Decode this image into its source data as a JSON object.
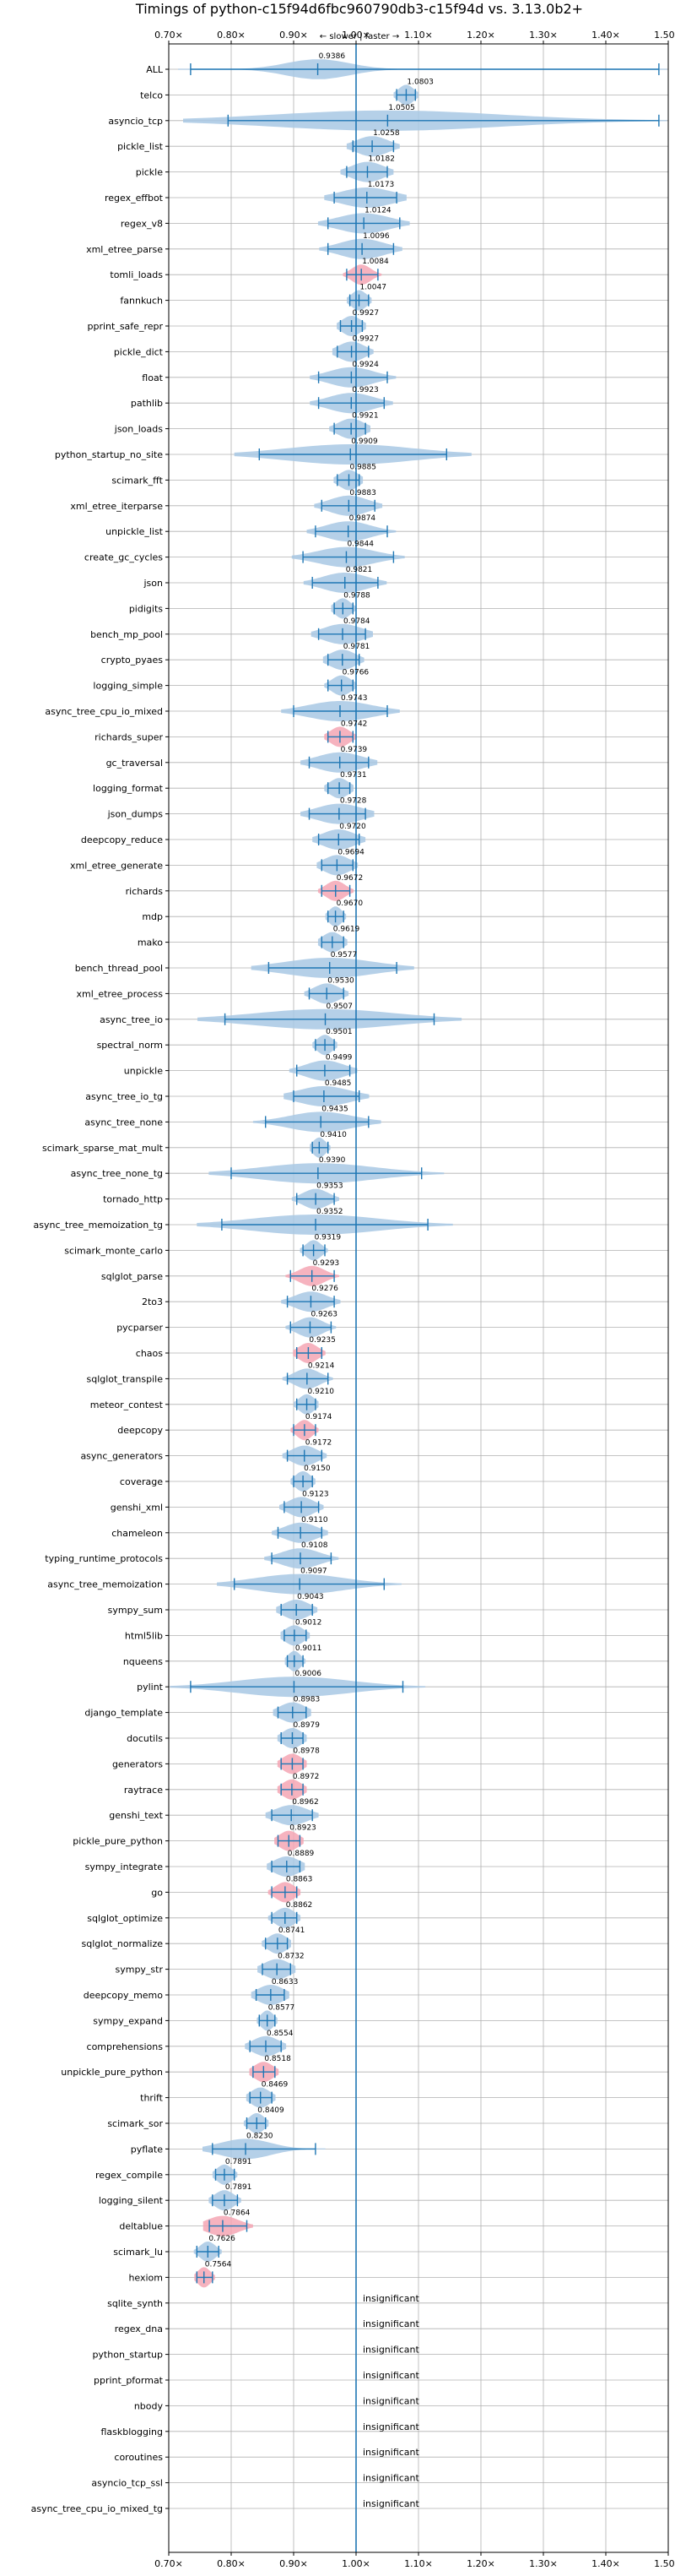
{
  "chart_data": {
    "type": "violin",
    "title": "Timings of python-c15f94d6fbc960790db3-c15f94d vs. 3.13.0b2+",
    "direction_note": "← slower | faster →",
    "x_ticks": [
      0.7,
      0.8,
      0.9,
      1.0,
      1.1,
      1.2,
      1.3,
      1.4,
      1.5
    ],
    "x_tick_labels": [
      "0.70×",
      "0.80×",
      "0.90×",
      "1.00×",
      "1.10×",
      "1.20×",
      "1.30×",
      "1.40×",
      "1.50×"
    ],
    "xlim": [
      0.7,
      1.5
    ],
    "reference_line": 1.0,
    "grid": true,
    "insignificant_label": "insignificant",
    "colors": {
      "violin": "#a8c8e4",
      "highlight": "#f4a6b4",
      "line": "#1f77b4",
      "grid": "#b0b0b0"
    },
    "benchmarks": [
      {
        "name": "ALL",
        "mean": 0.9386,
        "min": 0.735,
        "max": 1.485,
        "spread": 0.05
      },
      {
        "name": "telco",
        "mean": 1.0803,
        "min": 1.065,
        "max": 1.095,
        "spread": 0.012
      },
      {
        "name": "asyncio_tcp",
        "mean": 1.0505,
        "min": 0.795,
        "max": 1.485,
        "spread": 0.18
      },
      {
        "name": "pickle_list",
        "mean": 1.0258,
        "min": 0.995,
        "max": 1.06,
        "spread": 0.025
      },
      {
        "name": "pickle",
        "mean": 1.0182,
        "min": 0.985,
        "max": 1.05,
        "spread": 0.025
      },
      {
        "name": "regex_effbot",
        "mean": 1.0173,
        "min": 0.965,
        "max": 1.065,
        "spread": 0.04
      },
      {
        "name": "regex_v8",
        "mean": 1.0124,
        "min": 0.955,
        "max": 1.07,
        "spread": 0.04
      },
      {
        "name": "xml_etree_parse",
        "mean": 1.0096,
        "min": 0.955,
        "max": 1.06,
        "spread": 0.035
      },
      {
        "name": "tomli_loads",
        "mean": 1.0084,
        "min": 0.985,
        "max": 1.035,
        "spread": 0.015,
        "highlight": true
      },
      {
        "name": "fannkuch",
        "mean": 1.0047,
        "min": 0.99,
        "max": 1.02,
        "spread": 0.012
      },
      {
        "name": "pprint_safe_repr",
        "mean": 0.9927,
        "min": 0.975,
        "max": 1.01,
        "spread": 0.015
      },
      {
        "name": "pickle_dict",
        "mean": 0.9927,
        "min": 0.97,
        "max": 1.02,
        "spread": 0.02
      },
      {
        "name": "float",
        "mean": 0.9924,
        "min": 0.94,
        "max": 1.05,
        "spread": 0.035
      },
      {
        "name": "pathlib",
        "mean": 0.9923,
        "min": 0.94,
        "max": 1.045,
        "spread": 0.035
      },
      {
        "name": "json_loads",
        "mean": 0.9921,
        "min": 0.965,
        "max": 1.015,
        "spread": 0.02
      },
      {
        "name": "python_startup_no_site",
        "mean": 0.9909,
        "min": 0.845,
        "max": 1.145,
        "spread": 0.1
      },
      {
        "name": "scimark_fft",
        "mean": 0.9885,
        "min": 0.97,
        "max": 1.005,
        "spread": 0.015
      },
      {
        "name": "xml_etree_iterparse",
        "mean": 0.9883,
        "min": 0.945,
        "max": 1.03,
        "spread": 0.03
      },
      {
        "name": "unpickle_list",
        "mean": 0.9874,
        "min": 0.935,
        "max": 1.05,
        "spread": 0.035
      },
      {
        "name": "create_gc_cycles",
        "mean": 0.9844,
        "min": 0.915,
        "max": 1.06,
        "spread": 0.045
      },
      {
        "name": "json",
        "mean": 0.9821,
        "min": 0.93,
        "max": 1.035,
        "spread": 0.035
      },
      {
        "name": "pidigits",
        "mean": 0.9788,
        "min": 0.965,
        "max": 0.995,
        "spread": 0.012
      },
      {
        "name": "bench_mp_pool",
        "mean": 0.9784,
        "min": 0.94,
        "max": 1.015,
        "spread": 0.03
      },
      {
        "name": "crypto_pyaes",
        "mean": 0.9781,
        "min": 0.955,
        "max": 1.005,
        "spread": 0.02
      },
      {
        "name": "logging_simple",
        "mean": 0.9766,
        "min": 0.955,
        "max": 0.995,
        "spread": 0.015
      },
      {
        "name": "async_tree_cpu_io_mixed",
        "mean": 0.9743,
        "min": 0.9,
        "max": 1.05,
        "spread": 0.05
      },
      {
        "name": "richards_super",
        "mean": 0.9742,
        "min": 0.955,
        "max": 0.995,
        "spread": 0.015,
        "highlight": true
      },
      {
        "name": "gc_traversal",
        "mean": 0.9739,
        "min": 0.925,
        "max": 1.02,
        "spread": 0.035
      },
      {
        "name": "logging_format",
        "mean": 0.9731,
        "min": 0.955,
        "max": 0.99,
        "spread": 0.015
      },
      {
        "name": "json_dumps",
        "mean": 0.9728,
        "min": 0.925,
        "max": 1.015,
        "spread": 0.035
      },
      {
        "name": "deepcopy_reduce",
        "mean": 0.972,
        "min": 0.94,
        "max": 1.005,
        "spread": 0.025
      },
      {
        "name": "xml_etree_generate",
        "mean": 0.9694,
        "min": 0.945,
        "max": 0.995,
        "spread": 0.02
      },
      {
        "name": "richards",
        "mean": 0.9672,
        "min": 0.945,
        "max": 0.99,
        "spread": 0.015,
        "highlight": true
      },
      {
        "name": "mdp",
        "mean": 0.967,
        "min": 0.955,
        "max": 0.98,
        "spread": 0.01
      },
      {
        "name": "mako",
        "mean": 0.9619,
        "min": 0.945,
        "max": 0.98,
        "spread": 0.015
      },
      {
        "name": "bench_thread_pool",
        "mean": 0.9577,
        "min": 0.86,
        "max": 1.065,
        "spread": 0.07
      },
      {
        "name": "xml_etree_process",
        "mean": 0.953,
        "min": 0.925,
        "max": 0.98,
        "spread": 0.02
      },
      {
        "name": "async_tree_io",
        "mean": 0.9507,
        "min": 0.79,
        "max": 1.125,
        "spread": 0.11
      },
      {
        "name": "spectral_norm",
        "mean": 0.9501,
        "min": 0.935,
        "max": 0.965,
        "spread": 0.012
      },
      {
        "name": "unpickle",
        "mean": 0.9499,
        "min": 0.905,
        "max": 0.99,
        "spread": 0.03
      },
      {
        "name": "async_tree_io_tg",
        "mean": 0.9485,
        "min": 0.9,
        "max": 1.005,
        "spread": 0.04
      },
      {
        "name": "async_tree_none",
        "mean": 0.9435,
        "min": 0.855,
        "max": 1.02,
        "spread": 0.05
      },
      {
        "name": "scimark_sparse_mat_mult",
        "mean": 0.941,
        "min": 0.93,
        "max": 0.955,
        "spread": 0.01
      },
      {
        "name": "async_tree_none_tg",
        "mean": 0.939,
        "min": 0.8,
        "max": 1.105,
        "spread": 0.09
      },
      {
        "name": "tornado_http",
        "mean": 0.9353,
        "min": 0.905,
        "max": 0.965,
        "spread": 0.02
      },
      {
        "name": "async_tree_memoization_tg",
        "mean": 0.9352,
        "min": 0.785,
        "max": 1.115,
        "spread": 0.1
      },
      {
        "name": "scimark_monte_carlo",
        "mean": 0.9319,
        "min": 0.915,
        "max": 0.95,
        "spread": 0.012
      },
      {
        "name": "sqlglot_parse",
        "mean": 0.9293,
        "min": 0.895,
        "max": 0.965,
        "spread": 0.02,
        "highlight": true
      },
      {
        "name": "2to3",
        "mean": 0.9276,
        "min": 0.89,
        "max": 0.965,
        "spread": 0.025
      },
      {
        "name": "pycparser",
        "mean": 0.9263,
        "min": 0.895,
        "max": 0.96,
        "spread": 0.02
      },
      {
        "name": "chaos",
        "mean": 0.9235,
        "min": 0.905,
        "max": 0.945,
        "spread": 0.015,
        "highlight": true
      },
      {
        "name": "sqlglot_transpile",
        "mean": 0.9214,
        "min": 0.89,
        "max": 0.955,
        "spread": 0.02
      },
      {
        "name": "meteor_contest",
        "mean": 0.921,
        "min": 0.905,
        "max": 0.935,
        "spread": 0.012
      },
      {
        "name": "deepcopy",
        "mean": 0.9174,
        "min": 0.9,
        "max": 0.935,
        "spread": 0.012,
        "highlight": true
      },
      {
        "name": "async_generators",
        "mean": 0.9172,
        "min": 0.89,
        "max": 0.945,
        "spread": 0.02
      },
      {
        "name": "coverage",
        "mean": 0.915,
        "min": 0.9,
        "max": 0.93,
        "spread": 0.012
      },
      {
        "name": "genshi_xml",
        "mean": 0.9123,
        "min": 0.885,
        "max": 0.94,
        "spread": 0.02
      },
      {
        "name": "chameleon",
        "mean": 0.911,
        "min": 0.875,
        "max": 0.945,
        "spread": 0.025
      },
      {
        "name": "typing_runtime_protocols",
        "mean": 0.9108,
        "min": 0.865,
        "max": 0.96,
        "spread": 0.03
      },
      {
        "name": "async_tree_memoization",
        "mean": 0.9097,
        "min": 0.805,
        "max": 1.045,
        "spread": 0.07
      },
      {
        "name": "sympy_sum",
        "mean": 0.9043,
        "min": 0.88,
        "max": 0.93,
        "spread": 0.02
      },
      {
        "name": "html5lib",
        "mean": 0.9012,
        "min": 0.885,
        "max": 0.92,
        "spread": 0.015
      },
      {
        "name": "nqueens",
        "mean": 0.9011,
        "min": 0.89,
        "max": 0.915,
        "spread": 0.01
      },
      {
        "name": "pylint",
        "mean": 0.9006,
        "min": 0.735,
        "max": 1.075,
        "spread": 0.09
      },
      {
        "name": "django_template",
        "mean": 0.8983,
        "min": 0.875,
        "max": 0.92,
        "spread": 0.02
      },
      {
        "name": "docutils",
        "mean": 0.8979,
        "min": 0.88,
        "max": 0.915,
        "spread": 0.015
      },
      {
        "name": "generators",
        "mean": 0.8978,
        "min": 0.88,
        "max": 0.915,
        "spread": 0.015,
        "highlight": true
      },
      {
        "name": "raytrace",
        "mean": 0.8972,
        "min": 0.88,
        "max": 0.915,
        "spread": 0.015,
        "highlight": true
      },
      {
        "name": "genshi_text",
        "mean": 0.8962,
        "min": 0.865,
        "max": 0.93,
        "spread": 0.025
      },
      {
        "name": "pickle_pure_python",
        "mean": 0.8923,
        "min": 0.875,
        "max": 0.91,
        "spread": 0.015,
        "highlight": true
      },
      {
        "name": "sympy_integrate",
        "mean": 0.8889,
        "min": 0.865,
        "max": 0.91,
        "spread": 0.02
      },
      {
        "name": "go",
        "mean": 0.8863,
        "min": 0.865,
        "max": 0.905,
        "spread": 0.015,
        "highlight": true
      },
      {
        "name": "sqlglot_optimize",
        "mean": 0.8862,
        "min": 0.865,
        "max": 0.905,
        "spread": 0.015
      },
      {
        "name": "sqlglot_normalize",
        "mean": 0.8741,
        "min": 0.855,
        "max": 0.89,
        "spread": 0.015
      },
      {
        "name": "sympy_str",
        "mean": 0.8732,
        "min": 0.85,
        "max": 0.895,
        "spread": 0.02
      },
      {
        "name": "deepcopy_memo",
        "mean": 0.8633,
        "min": 0.84,
        "max": 0.885,
        "spread": 0.02
      },
      {
        "name": "sympy_expand",
        "mean": 0.8577,
        "min": 0.845,
        "max": 0.87,
        "spread": 0.01
      },
      {
        "name": "comprehensions",
        "mean": 0.8554,
        "min": 0.83,
        "max": 0.88,
        "spread": 0.02
      },
      {
        "name": "unpickle_pure_python",
        "mean": 0.8518,
        "min": 0.835,
        "max": 0.87,
        "spread": 0.015,
        "highlight": true
      },
      {
        "name": "thrift",
        "mean": 0.8469,
        "min": 0.83,
        "max": 0.865,
        "spread": 0.015
      },
      {
        "name": "scimark_sor",
        "mean": 0.8409,
        "min": 0.825,
        "max": 0.855,
        "spread": 0.012
      },
      {
        "name": "pyflate",
        "mean": 0.823,
        "min": 0.77,
        "max": 0.935,
        "spread": 0.04
      },
      {
        "name": "regex_compile",
        "mean": 0.7891,
        "min": 0.775,
        "max": 0.805,
        "spread": 0.012
      },
      {
        "name": "logging_silent",
        "mean": 0.7891,
        "min": 0.77,
        "max": 0.81,
        "spread": 0.015
      },
      {
        "name": "deltablue",
        "mean": 0.7864,
        "min": 0.765,
        "max": 0.825,
        "spread": 0.025,
        "highlight": true
      },
      {
        "name": "scimark_lu",
        "mean": 0.7626,
        "min": 0.745,
        "max": 0.78,
        "spread": 0.012
      },
      {
        "name": "hexiom",
        "mean": 0.7564,
        "min": 0.745,
        "max": 0.77,
        "spread": 0.01,
        "highlight": true
      },
      {
        "name": "sqlite_synth",
        "insignificant": true
      },
      {
        "name": "regex_dna",
        "insignificant": true
      },
      {
        "name": "python_startup",
        "insignificant": true
      },
      {
        "name": "pprint_pformat",
        "insignificant": true
      },
      {
        "name": "nbody",
        "insignificant": true
      },
      {
        "name": "flaskblogging",
        "insignificant": true
      },
      {
        "name": "coroutines",
        "insignificant": true
      },
      {
        "name": "asyncio_tcp_ssl",
        "insignificant": true
      },
      {
        "name": "async_tree_cpu_io_mixed_tg",
        "insignificant": true
      }
    ]
  }
}
